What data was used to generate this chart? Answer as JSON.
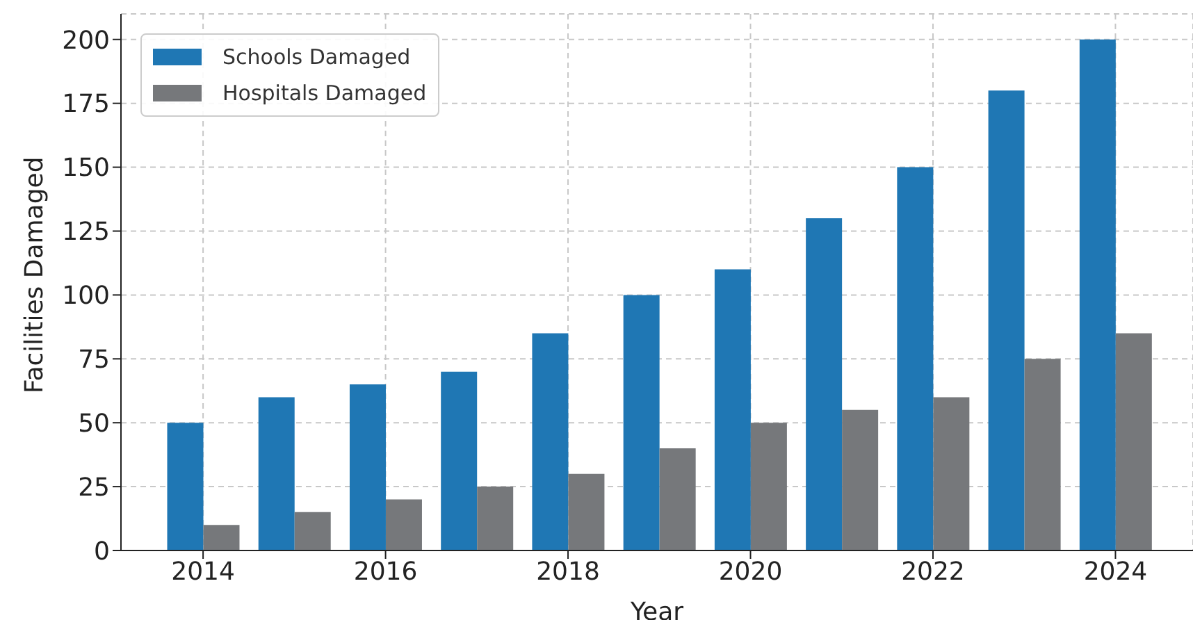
{
  "chart_data": {
    "type": "bar",
    "xlabel": "Year",
    "ylabel": "Facilities Damaged",
    "x": [
      2014,
      2015,
      2016,
      2017,
      2018,
      2019,
      2020,
      2021,
      2022,
      2023,
      2024
    ],
    "series": [
      {
        "name": "Schools Damaged",
        "color": "#1f77b4",
        "values": [
          50,
          60,
          65,
          70,
          85,
          100,
          110,
          130,
          150,
          180,
          200
        ]
      },
      {
        "name": "Hospitals Damaged",
        "color": "#76787b",
        "values": [
          10,
          15,
          20,
          25,
          30,
          40,
          50,
          55,
          60,
          75,
          85
        ]
      }
    ],
    "xlim": [
      2013.1,
      2024.85
    ],
    "xticks": [
      2014,
      2016,
      2018,
      2020,
      2022,
      2024
    ],
    "ylim": [
      0,
      210
    ],
    "yticks": [
      0,
      25,
      50,
      75,
      100,
      125,
      150,
      175,
      200
    ],
    "grid": true,
    "legend": "top left"
  }
}
